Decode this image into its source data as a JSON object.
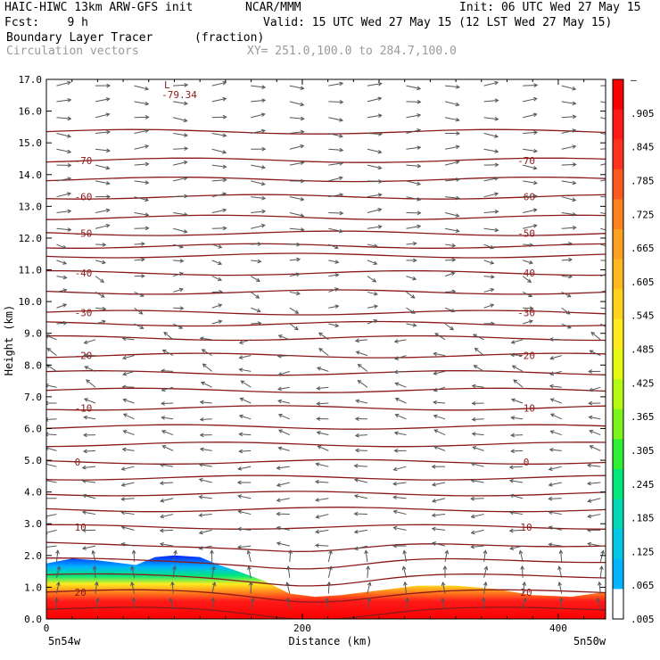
{
  "header": {
    "model": "HAIC-HIWC 13km ARW-GFS init",
    "institution": "NCAR/MMM",
    "init": "Init: 06 UTC Wed 27 May 15",
    "fcst": "Fcst:    9 h",
    "valid": "Valid: 15 UTC Wed 27 May 15 (12 LST Wed 27 May 15)",
    "field_name": "Boundary Layer Tracer",
    "field_units": "(fraction)",
    "vector_label": "Circulation vectors",
    "xy_range": "XY= 251.0,100.0 to 284.7,100.0"
  },
  "colors": {
    "contour": "#8b1a1a",
    "vector": "#555555",
    "tracer_high": "#ff1a1a"
  },
  "chart_data": {
    "type": "heatmap",
    "title": "Boundary Layer Tracer (fraction)",
    "xlabel": "Distance (km)",
    "ylabel": "Height (km)",
    "xlim": [
      0,
      437
    ],
    "ylim": [
      0,
      17
    ],
    "x_ticks": [
      0,
      200,
      400
    ],
    "y_ticks": [
      "0.0",
      "1.0",
      "2.0",
      "3.0",
      "4.0",
      "5.0",
      "6.0",
      "7.0",
      "8.0",
      "9.0",
      "10.0",
      "11.0",
      "12.0",
      "13.0",
      "14.0",
      "15.0",
      "16.0",
      "17.0"
    ],
    "x_endpoints": {
      "left": "5n54w",
      "right": "5n50w"
    },
    "colorbar": {
      "labels": [
        "–",
        ".905",
        ".845",
        ".785",
        ".725",
        ".665",
        ".605",
        ".545",
        ".485",
        ".425",
        ".365",
        ".305",
        ".245",
        ".185",
        ".125",
        ".065",
        ".005"
      ],
      "colors": [
        "#ffffff",
        "#00b4ff",
        "#00c8e6",
        "#00d9b4",
        "#00e87a",
        "#2ef032",
        "#7cf51a",
        "#b4fa14",
        "#e6fa14",
        "#ffeb1e",
        "#ffd21e",
        "#ffb91e",
        "#ffa01e",
        "#ff821e",
        "#ff5a1e",
        "#ff321e",
        "#ff1a1a",
        "#fa0000"
      ]
    },
    "temperature_contours": [
      {
        "label": "20",
        "height": 0.85
      },
      {
        "label": "10",
        "height": 2.9
      },
      {
        "label": "0",
        "height": 4.95
      },
      {
        "label": "-10",
        "height": 6.65
      },
      {
        "label": "-20",
        "height": 8.3
      },
      {
        "label": "-30",
        "height": 9.65
      },
      {
        "label": "-40",
        "height": 10.9
      },
      {
        "label": "-50",
        "height": 12.15
      },
      {
        "label": "-60",
        "height": 13.3
      },
      {
        "label": "-70",
        "height": 14.45
      }
    ],
    "contour_levels_unlabeled": [
      0.3,
      1.35,
      1.85,
      2.35,
      3.45,
      3.95,
      4.45,
      5.5,
      6.05,
      7.2,
      7.75,
      8.85,
      9.3,
      10.3,
      11.45,
      11.75,
      12.65,
      13.85,
      15.35
    ],
    "min_label": "L",
    "min_value": "-79.34",
    "tracer_top": [
      {
        "x": 0,
        "z": 1.75
      },
      {
        "x": 20,
        "z": 1.9
      },
      {
        "x": 40,
        "z": 1.85
      },
      {
        "x": 70,
        "z": 1.7
      },
      {
        "x": 85,
        "z": 1.95
      },
      {
        "x": 100,
        "z": 2.0
      },
      {
        "x": 120,
        "z": 1.95
      },
      {
        "x": 135,
        "z": 1.7
      },
      {
        "x": 150,
        "z": 1.5
      },
      {
        "x": 170,
        "z": 1.2
      },
      {
        "x": 190,
        "z": 0.8
      },
      {
        "x": 210,
        "z": 0.7
      },
      {
        "x": 230,
        "z": 0.75
      },
      {
        "x": 260,
        "z": 0.9
      },
      {
        "x": 290,
        "z": 1.05
      },
      {
        "x": 320,
        "z": 1.05
      },
      {
        "x": 350,
        "z": 0.95
      },
      {
        "x": 380,
        "z": 0.75
      },
      {
        "x": 410,
        "z": 0.7
      },
      {
        "x": 437,
        "z": 0.85
      }
    ],
    "wind_vectors": [
      {
        "z_min": 12.0,
        "z_max": 17.0,
        "u": 1.0,
        "w": 0.0
      },
      {
        "z_min": 9.0,
        "z_max": 12.0,
        "u": 0.7,
        "w": -0.1
      },
      {
        "z_min": 5.0,
        "z_max": 9.0,
        "u": -0.8,
        "w": 0.15
      },
      {
        "z_min": 2.0,
        "z_max": 5.0,
        "u": -0.9,
        "w": 0.0
      },
      {
        "z_min": 0.0,
        "z_max": 2.0,
        "u": 0.0,
        "w": 0.8
      }
    ]
  }
}
